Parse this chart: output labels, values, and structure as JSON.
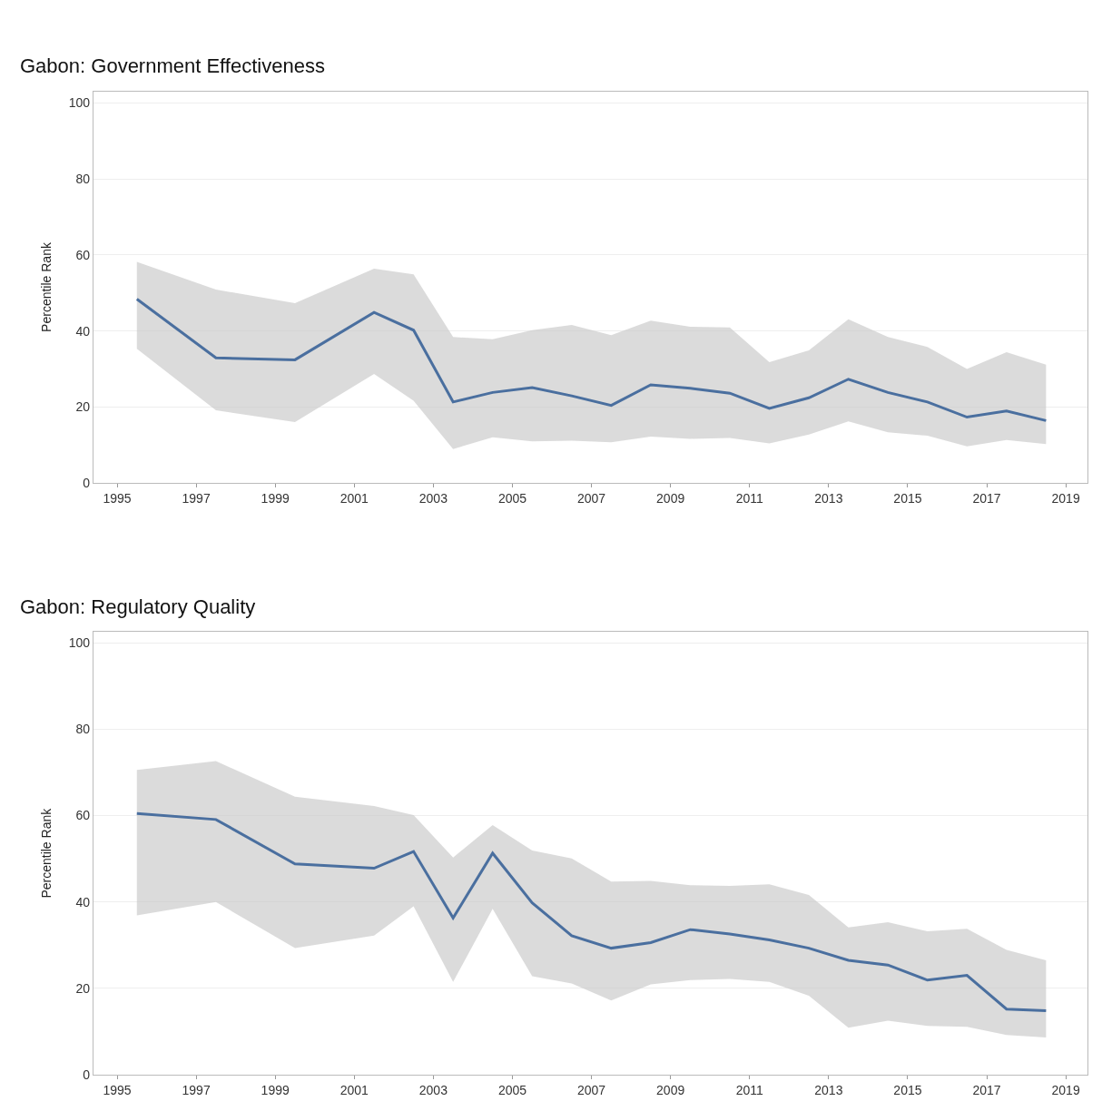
{
  "chart_data": [
    {
      "type": "line",
      "title": "Gabon: Government Effectiveness",
      "ylabel": "Percentile Rank",
      "x": [
        1995.5,
        1997.5,
        1999.5,
        2001.5,
        2002.5,
        2003.5,
        2004.5,
        2005.5,
        2006.5,
        2007.5,
        2008.5,
        2009.5,
        2010.5,
        2011.5,
        2012.5,
        2013.5,
        2014.5,
        2015.5,
        2016.5,
        2017.5,
        2018.5
      ],
      "series": [
        {
          "color": "#4a6f9f",
          "values": [
            48.4,
            32.9,
            32.4,
            44.9,
            40.2,
            21.3,
            23.8,
            25.1,
            22.9,
            20.4,
            25.8,
            24.9,
            23.6,
            19.6,
            22.4,
            27.3,
            23.8,
            21.3,
            17.3,
            18.9,
            16.4
          ],
          "upper": [
            58.2,
            50.9,
            47.3,
            56.4,
            54.9,
            38.4,
            37.8,
            40.2,
            41.6,
            38.9,
            42.7,
            41.1,
            40.9,
            31.8,
            34.9,
            43.1,
            38.4,
            35.8,
            30,
            34.4,
            31.1
          ],
          "lower": [
            35.3,
            19.1,
            16,
            28.7,
            21.6,
            8.9,
            12,
            10.9,
            11.1,
            10.7,
            12.2,
            11.6,
            11.8,
            10.4,
            12.7,
            16.2,
            13.3,
            12.4,
            9.6,
            11.3,
            10.2
          ]
        }
      ],
      "xlim": [
        1994.4,
        2019.55
      ],
      "ylim": [
        0,
        103
      ],
      "xticks": [
        1995,
        1997,
        1999,
        2001,
        2003,
        2005,
        2007,
        2009,
        2011,
        2013,
        2015,
        2017,
        2019
      ],
      "yticks": [
        0,
        20,
        40,
        60,
        80,
        100
      ],
      "grid": "y",
      "line_style": "solid",
      "marker": "none"
    },
    {
      "type": "line",
      "title": "Gabon: Regulatory Quality",
      "ylabel": "Percentile Rank",
      "x": [
        1995.5,
        1997.5,
        1999.5,
        2001.5,
        2002.5,
        2003.5,
        2004.5,
        2005.5,
        2006.5,
        2007.5,
        2008.5,
        2009.5,
        2010.5,
        2011.5,
        2012.5,
        2013.5,
        2014.5,
        2015.5,
        2016.5,
        2017.5,
        2018.5
      ],
      "series": [
        {
          "color": "#4a6f9f",
          "values": [
            60.5,
            59.1,
            48.8,
            47.8,
            51.7,
            36.3,
            51.3,
            39.8,
            32.2,
            29.3,
            30.6,
            33.6,
            32.6,
            31.2,
            29.3,
            26.5,
            25.4,
            21.9,
            23,
            15.2,
            14.8
          ],
          "upper": [
            70.6,
            72.6,
            64.4,
            62.2,
            60.1,
            50.3,
            57.8,
            51.9,
            50.1,
            44.7,
            44.9,
            43.9,
            43.7,
            44.1,
            41.6,
            34.1,
            35.3,
            33.2,
            33.8,
            28.9,
            26.5
          ],
          "lower": [
            36.9,
            40,
            29.3,
            32.2,
            39,
            21.5,
            38.4,
            22.8,
            21.1,
            17.2,
            20.9,
            21.9,
            22.2,
            21.5,
            18.3,
            10.9,
            12.5,
            11.3,
            11.1,
            9.2,
            8.6
          ]
        }
      ],
      "xlim": [
        1994.4,
        2019.55
      ],
      "ylim": [
        0,
        102.5
      ],
      "xticks": [
        1995,
        1997,
        1999,
        2001,
        2003,
        2005,
        2007,
        2009,
        2011,
        2013,
        2015,
        2017,
        2019
      ],
      "yticks": [
        0,
        20,
        40,
        60,
        80,
        100
      ],
      "grid": "y",
      "line_style": "solid",
      "marker": "none"
    }
  ]
}
